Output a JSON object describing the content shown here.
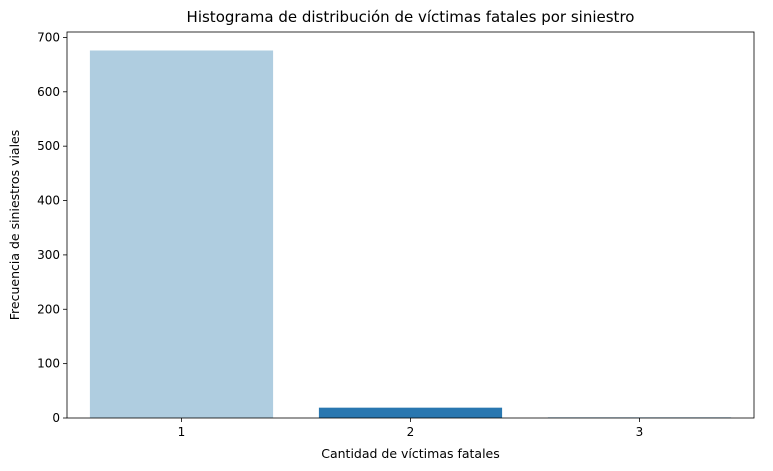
{
  "chart_data": {
    "type": "bar",
    "title": "Histograma de distribución de víctimas fatales por siniestro",
    "xlabel": "Cantidad de víctimas fatales",
    "ylabel": "Frecuencia de siniestros viales",
    "categories": [
      "1",
      "2",
      "3"
    ],
    "values": [
      676,
      19,
      1
    ],
    "colors": [
      "#afcde0",
      "#2977b0",
      "#2977b0"
    ],
    "ylim": [
      0,
      710
    ],
    "yticks": [
      0,
      100,
      200,
      300,
      400,
      500,
      600,
      700
    ],
    "grid": false,
    "legend": "none"
  }
}
